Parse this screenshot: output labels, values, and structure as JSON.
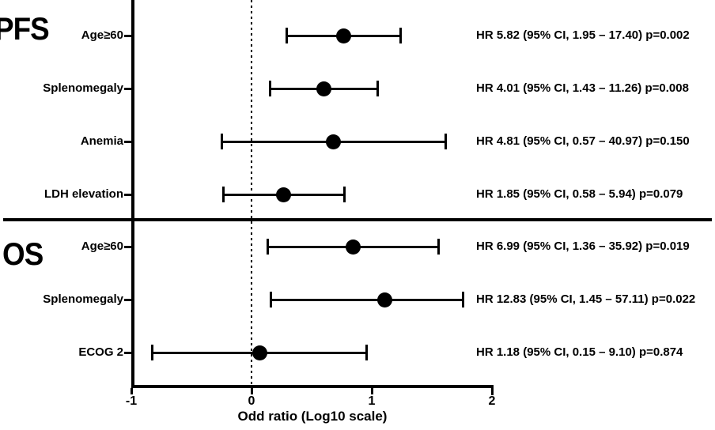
{
  "figure": {
    "background": "#ffffff",
    "foreground": "#000000"
  },
  "chart_data": {
    "type": "forest",
    "title": "",
    "xlabel": "Odd ratio (Log10 scale)",
    "x_scale": "log10",
    "xlim": [
      -1,
      2
    ],
    "x_ticks": [
      "-1",
      "0",
      "1",
      "2"
    ],
    "reference_line_at_log10": 0,
    "grid": false,
    "marker_color": "#000000",
    "sections": [
      {
        "label": "PFS",
        "rows": [
          {
            "label": "Age≥60",
            "hr": 5.82,
            "ci_low": 1.95,
            "ci_high": 17.4,
            "p_value": "0.002",
            "annotation": "HR 5.82 (95% CI, 1.95 – 17.40) p=0.002"
          },
          {
            "label": "Splenomegaly",
            "hr": 4.01,
            "ci_low": 1.43,
            "ci_high": 11.26,
            "p_value": "0.008",
            "annotation": "HR 4.01 (95% CI, 1.43 – 11.26) p=0.008"
          },
          {
            "label": "Anemia",
            "hr": 4.81,
            "ci_low": 0.57,
            "ci_high": 40.97,
            "p_value": "0.150",
            "annotation": "HR 4.81 (95% CI, 0.57 – 40.97) p=0.150"
          },
          {
            "label": "LDH elevation",
            "hr": 1.85,
            "ci_low": 0.58,
            "ci_high": 5.94,
            "p_value": "0.079",
            "annotation": "HR 1.85 (95% CI, 0.58 – 5.94) p=0.079"
          }
        ]
      },
      {
        "label": "OS",
        "rows": [
          {
            "label": "Age≥60",
            "hr": 6.99,
            "ci_low": 1.36,
            "ci_high": 35.92,
            "p_value": "0.019",
            "annotation": "HR 6.99 (95% CI, 1.36 – 35.92) p=0.019"
          },
          {
            "label": "Splenomegaly",
            "hr": 12.83,
            "ci_low": 1.45,
            "ci_high": 57.11,
            "p_value": "0.022",
            "annotation": "HR 12.83 (95% CI, 1.45 – 57.11) p=0.022"
          },
          {
            "label": "ECOG 2",
            "hr": 1.18,
            "ci_low": 0.15,
            "ci_high": 9.1,
            "p_value": "0.874",
            "annotation": "HR 1.18 (95% CI, 0.15 – 9.10) p=0.874"
          }
        ]
      }
    ]
  }
}
